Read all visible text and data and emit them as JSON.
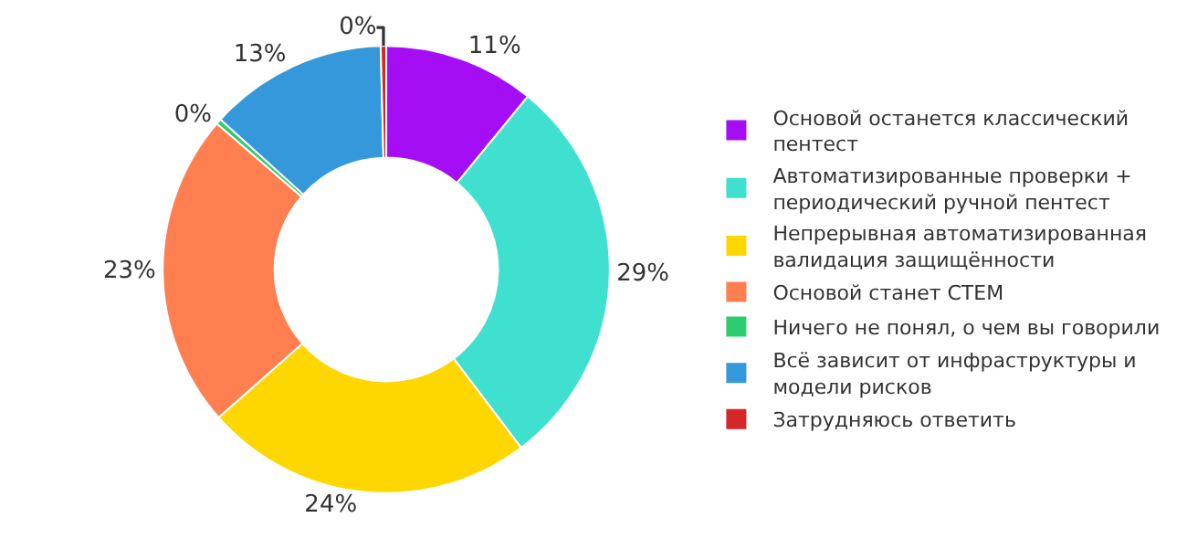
{
  "chart_data": {
    "type": "donut",
    "categories": [
      "Основой останется классический пентест",
      "Автоматизированные проверки + периодический ручной пентест",
      "Непрерывная автоматизированная валидация защищённости",
      "Основой станет CTEM",
      "Ничего не понял, о чем вы говорили",
      "Всё зависит от инфраструктуры и модели рисков",
      "Затрудняюсь ответить"
    ],
    "values": [
      11,
      29,
      24,
      23,
      0.4,
      13,
      0.4
    ],
    "value_labels": [
      "11%",
      "29%",
      "24%",
      "23%",
      "0%",
      "13%",
      "0%"
    ],
    "colors": [
      "#a50df5",
      "#40e0d0",
      "#ffd700",
      "#ff7f50",
      "#2ecc71",
      "#3498db",
      "#d62728"
    ],
    "legend": "right"
  }
}
